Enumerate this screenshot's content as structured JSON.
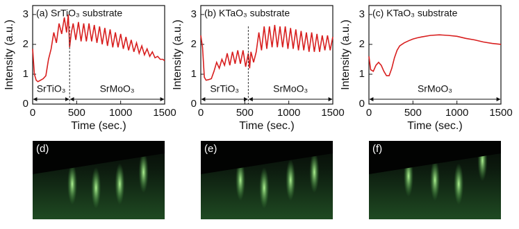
{
  "chart_data": [
    {
      "type": "line",
      "title": "(a) SrTiO₃ substrate",
      "xlabel": "Time (sec.)",
      "ylabel": "Intensity (a.u.)",
      "xlim": [
        0,
        1500
      ],
      "ylim": [
        0,
        3.3
      ],
      "xticks": [
        0,
        500,
        1000,
        1500
      ],
      "yticks": [
        0,
        1,
        2,
        3
      ],
      "divider": 420,
      "phases": [
        "SrTiO₃",
        "SrMoO₃"
      ],
      "x": [
        0,
        20,
        40,
        60,
        90,
        120,
        150,
        180,
        210,
        240,
        270,
        300,
        330,
        360,
        385,
        405,
        420,
        440,
        460,
        490,
        520,
        550,
        580,
        610,
        640,
        670,
        700,
        730,
        760,
        790,
        820,
        850,
        880,
        910,
        940,
        970,
        1000,
        1030,
        1060,
        1090,
        1120,
        1150,
        1180,
        1210,
        1240,
        1270,
        1300,
        1330,
        1360,
        1390,
        1420,
        1450,
        1480,
        1500
      ],
      "series": [
        {
          "color": "#d81e1e",
          "values": [
            1.85,
            1.0,
            0.8,
            0.75,
            0.8,
            0.85,
            0.95,
            1.5,
            1.85,
            2.4,
            2.05,
            2.7,
            2.35,
            2.9,
            2.4,
            3.0,
            1.9,
            2.4,
            2.7,
            2.15,
            2.75,
            2.1,
            2.7,
            2.1,
            2.7,
            2.1,
            2.65,
            2.05,
            2.6,
            2.0,
            2.55,
            1.95,
            2.5,
            1.9,
            2.4,
            1.9,
            2.35,
            1.85,
            2.25,
            1.8,
            2.15,
            1.75,
            2.05,
            1.7,
            1.95,
            1.65,
            1.85,
            1.6,
            1.75,
            1.55,
            1.6,
            1.5,
            1.5,
            1.45
          ]
        }
      ]
    },
    {
      "type": "line",
      "title": "(b) KTaO₃ substrate",
      "xlabel": "Time (sec.)",
      "ylabel": "Intensity (a.u.)",
      "xlim": [
        0,
        1500
      ],
      "ylim": [
        0,
        3.3
      ],
      "xticks": [
        0,
        500,
        1000,
        1500
      ],
      "yticks": [
        0,
        1,
        2,
        3
      ],
      "divider": 540,
      "phases": [
        "SrTiO₃",
        "SrMoO₃"
      ],
      "x": [
        0,
        20,
        40,
        60,
        90,
        120,
        150,
        180,
        210,
        240,
        270,
        300,
        330,
        360,
        390,
        420,
        450,
        480,
        510,
        540,
        555,
        570,
        600,
        630,
        660,
        690,
        720,
        750,
        780,
        810,
        840,
        870,
        900,
        930,
        960,
        990,
        1020,
        1050,
        1080,
        1110,
        1140,
        1170,
        1200,
        1230,
        1260,
        1290,
        1320,
        1350,
        1380,
        1410,
        1440,
        1470,
        1500
      ],
      "series": [
        {
          "color": "#d81e1e",
          "values": [
            2.3,
            1.9,
            0.9,
            0.8,
            0.82,
            0.85,
            1.1,
            1.4,
            1.2,
            1.5,
            1.3,
            1.7,
            1.3,
            1.75,
            1.35,
            1.8,
            1.35,
            1.8,
            1.25,
            1.7,
            1.2,
            1.75,
            1.4,
            1.75,
            2.4,
            1.8,
            2.6,
            1.85,
            2.6,
            1.9,
            2.65,
            1.9,
            2.6,
            1.9,
            2.6,
            1.85,
            2.55,
            1.85,
            2.5,
            1.8,
            2.45,
            1.8,
            2.4,
            1.75,
            2.4,
            1.75,
            2.35,
            1.75,
            2.3,
            1.8,
            2.3,
            1.8,
            2.25
          ]
        }
      ]
    },
    {
      "type": "line",
      "title": "(c) KTaO₃ substrate",
      "xlabel": "Time (sec.)",
      "ylabel": "Intensity (a.u.)",
      "xlim": [
        0,
        1500
      ],
      "ylim": [
        0,
        3.3
      ],
      "xticks": [
        0,
        500,
        1000,
        1500
      ],
      "yticks": [
        0,
        1,
        2,
        3
      ],
      "phases": [
        "SrMoO₃"
      ],
      "x": [
        0,
        20,
        50,
        80,
        110,
        140,
        170,
        200,
        230,
        260,
        290,
        320,
        350,
        400,
        450,
        500,
        550,
        600,
        700,
        800,
        900,
        1000,
        1100,
        1200,
        1300,
        1400,
        1500
      ],
      "series": [
        {
          "color": "#d81e1e",
          "values": [
            1.6,
            1.15,
            1.1,
            1.3,
            1.4,
            1.3,
            1.1,
            0.95,
            0.95,
            1.2,
            1.55,
            1.8,
            1.95,
            2.05,
            2.12,
            2.18,
            2.22,
            2.25,
            2.3,
            2.32,
            2.3,
            2.27,
            2.2,
            2.15,
            2.08,
            2.03,
            2.0
          ]
        }
      ]
    }
  ],
  "images": [
    "(d)",
    "(e)",
    "(f)"
  ]
}
